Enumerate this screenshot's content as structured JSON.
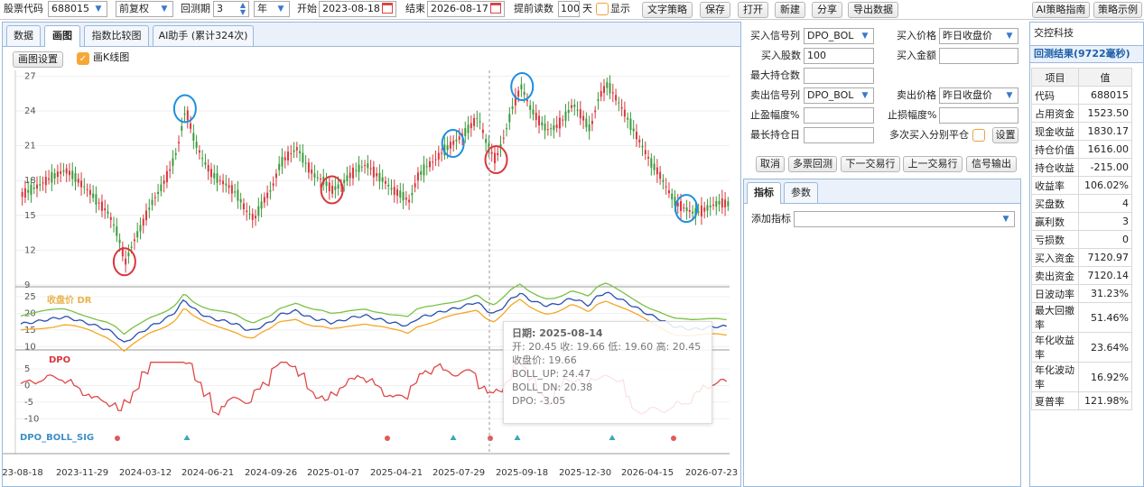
{
  "toolbar": {
    "code_label": "股票代码",
    "code_value": "688015",
    "adjust": "前复权",
    "period_label": "回测期",
    "period_value": "3",
    "period_unit": "年",
    "start_label": "开始",
    "start_date": "2023-08-18",
    "end_label": "结束",
    "end_date": "2026-08-17",
    "preload_label": "提前读数",
    "preload_value": "100",
    "preload_unit": "天",
    "show_label": "显示",
    "buttons": [
      "文字策略",
      "保存",
      "打开",
      "新建",
      "分享",
      "导出数据"
    ],
    "right_buttons": [
      "AI策略指南",
      "策略示例"
    ]
  },
  "tabs": [
    "数据",
    "画图",
    "指数比较图",
    "AI助手 (累计324次)"
  ],
  "chart_toolbar": {
    "settings": "画图设置",
    "kline_label": "画K线图"
  },
  "chart_data": {
    "type": "candlestick",
    "y_ticks": [
      "27",
      "24",
      "21",
      "18",
      "15",
      "12",
      "9"
    ],
    "x_ticks": [
      "23-08-18",
      "2023-11-29",
      "2024-03-12",
      "2024-06-21",
      "2024-09-26",
      "2025-01-07",
      "2025-04-21",
      "2025-07-29",
      "2025-09-18",
      "2025-12-30",
      "2026-04-15",
      "2026-07-23"
    ],
    "price_series": [
      16.8,
      17.2,
      17.6,
      18.1,
      18.5,
      18.9,
      18.4,
      17.6,
      16.9,
      16.0,
      15.2,
      13.6,
      11.0,
      12.8,
      14.3,
      16.0,
      17.2,
      18.6,
      20.6,
      24.2,
      21.5,
      19.8,
      18.6,
      18.0,
      17.5,
      16.8,
      15.4,
      14.7,
      16.2,
      17.3,
      19.5,
      20.2,
      20.8,
      19.4,
      18.4,
      18.0,
      17.2,
      17.6,
      18.4,
      19.0,
      19.4,
      18.6,
      18.0,
      17.2,
      16.8,
      16.2,
      18.4,
      19.2,
      19.8,
      20.6,
      21.2,
      21.8,
      22.6,
      23.5,
      21.1,
      19.8,
      21.8,
      24.4,
      26.1,
      24.3,
      23.2,
      22.4,
      22.6,
      23.4,
      24.6,
      23.6,
      22.4,
      25.2,
      26.3,
      25.1,
      23.8,
      22.4,
      21.0,
      19.6,
      18.6,
      17.2,
      16.0,
      15.6,
      15.2,
      15.4,
      15.8,
      16.1,
      16.0
    ],
    "sub1_title": "收盘价 DR",
    "sub1_ticks": [
      "25",
      "20",
      "15",
      "10"
    ],
    "sub2_title": "DPO",
    "sub2_ticks": [
      "5",
      "0",
      "-5",
      "-10"
    ],
    "sub3_title": "DPO_BOLL_SIG"
  },
  "tooltip": {
    "date_label": "日期: 2025-08-14",
    "ohlc": "开: 20.45 收: 19.66 低: 19.60 高: 20.45",
    "close": "收盘价: 19.66",
    "boll_up": "BOLL_UP: 24.47",
    "boll_dn": "BOLL_DN: 20.38",
    "dpo": "DPO: -3.05"
  },
  "form": {
    "buy_signal_label": "买入信号列",
    "buy_signal_value": "DPO_BOL",
    "buy_price_label": "买入价格",
    "buy_price_value": "昨日收盘价",
    "buy_shares_label": "买入股数",
    "buy_shares_value": "100",
    "buy_amount_label": "买入金额",
    "max_hold_label": "最大持仓数",
    "sell_signal_label": "卖出信号列",
    "sell_signal_value": "DPO_BOL",
    "sell_price_label": "卖出价格",
    "sell_price_value": "昨日收盘价",
    "tp_label": "止盈幅度%",
    "sl_label": "止损幅度%",
    "max_days_label": "最长持仓日",
    "multi_label": "多次买入分别平仓",
    "set_button": "设置",
    "actions": [
      "取消",
      "多票回测",
      "下一交易行",
      "上一交易行",
      "信号输出"
    ]
  },
  "indicator": {
    "tabs": [
      "指标",
      "参数"
    ],
    "add_label": "添加指标"
  },
  "results": {
    "company": "交控科技",
    "title": "回测结果(9722毫秒)",
    "head": [
      "项目",
      "值"
    ],
    "rows": [
      [
        "代码",
        "688015"
      ],
      [
        "占用资金",
        "1523.50"
      ],
      [
        "现金收益",
        "1830.17"
      ],
      [
        "持仓价值",
        "1616.00"
      ],
      [
        "持仓收益",
        "-215.00"
      ],
      [
        "收益率",
        "106.02%"
      ],
      [
        "买盘数",
        "4"
      ],
      [
        "赢利数",
        "3"
      ],
      [
        "亏损数",
        "0"
      ],
      [
        "买入资金",
        "7120.97"
      ],
      [
        "卖出资金",
        "7120.14"
      ],
      [
        "日波动率",
        "31.23%"
      ],
      [
        "最大回撤率",
        "51.46%"
      ],
      [
        "年化收益率",
        "23.64%"
      ],
      [
        "年化波动率",
        "16.92%"
      ],
      [
        "夏普率",
        "121.98%"
      ]
    ]
  },
  "colors": {
    "up": "#d9363e",
    "down": "#3a9b3a",
    "accent": "#1e6fc2",
    "tab_bg": "#eaf1fb"
  }
}
